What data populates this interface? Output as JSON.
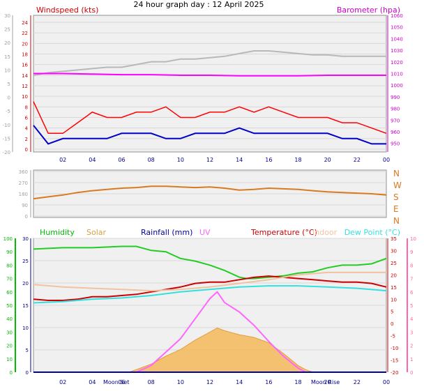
{
  "page": {
    "title": "24 hour graph day : 12 April 2025"
  },
  "colors": {
    "windspeed": "#ff0000",
    "wind_avg": "#0000c8",
    "barometer": "#ff00ff",
    "temp_gray": "#b8b8b8",
    "direction": "#d87a20",
    "humidity": "#22cc22",
    "solar": "#f5b85a",
    "rainfall": "#0000a0",
    "uv": "#ff66ff",
    "temperature": "#cc0000",
    "indoor": "#f2c2a0",
    "dewpoint": "#33e0e0",
    "axis_left_gray": "#a0a0a0",
    "axis_green": "#00bb00",
    "axis_pink": "#ff66aa",
    "hour_labels": "#000090"
  },
  "chart_data": [
    {
      "type": "line",
      "id": "wind",
      "labels": {
        "left": "Windspeed (kts)",
        "right": "Barometer (hpa)"
      },
      "x_ticks": [
        "02",
        "04",
        "06",
        "08",
        "10",
        "12",
        "14",
        "16",
        "18",
        "20",
        "22",
        "00"
      ],
      "left_axis_a": {
        "ticks": [
          "30",
          "25",
          "20",
          "15",
          "10",
          "5",
          "0",
          "-5",
          "-10",
          "-15",
          "-20"
        ],
        "range": [
          -20,
          30
        ]
      },
      "left_axis_b": {
        "ticks": [
          "24",
          "22",
          "20",
          "18",
          "16",
          "14",
          "12",
          "10",
          "8",
          "6",
          "4",
          "2",
          "0"
        ],
        "range": [
          0,
          24
        ]
      },
      "right_axis": {
        "ticks": [
          "1060",
          "1050",
          "1040",
          "1030",
          "1020",
          "1010",
          "1000",
          "990",
          "980",
          "970",
          "960",
          "950"
        ],
        "range": [
          945,
          1060
        ]
      },
      "series": [
        {
          "key": "gust",
          "axis": "b",
          "x": [
            0,
            1,
            2,
            3,
            4,
            5,
            6,
            7,
            8,
            9,
            10,
            11,
            12,
            13,
            14,
            15,
            16,
            17,
            18,
            19,
            20,
            21,
            22,
            23,
            24
          ],
          "y": [
            9,
            3,
            3,
            5,
            7,
            6,
            6,
            7,
            7,
            8,
            6,
            6,
            7,
            7,
            8,
            7,
            8,
            7,
            6,
            6,
            6,
            5,
            5,
            4,
            3
          ]
        },
        {
          "key": "avg",
          "axis": "b",
          "x": [
            0,
            1,
            2,
            3,
            4,
            5,
            6,
            7,
            8,
            9,
            10,
            11,
            12,
            13,
            14,
            15,
            16,
            17,
            18,
            19,
            20,
            21,
            22,
            23,
            24
          ],
          "y": [
            4.5,
            1,
            2,
            2,
            2,
            2,
            3,
            3,
            3,
            2,
            2,
            3,
            3,
            3,
            4,
            3,
            3,
            3,
            3,
            3,
            3,
            2,
            2,
            1,
            1
          ]
        },
        {
          "key": "temp_gray",
          "axis": "a",
          "x": [
            0,
            1,
            2,
            3,
            4,
            5,
            6,
            7,
            8,
            9,
            10,
            11,
            12,
            13,
            14,
            15,
            16,
            17,
            18,
            19,
            20,
            21,
            22,
            23,
            24
          ],
          "y": [
            8,
            9,
            9.5,
            10,
            10.5,
            11,
            11,
            12,
            13,
            13,
            14,
            14,
            14.5,
            15,
            16,
            17,
            17,
            16.5,
            16,
            15.5,
            15.5,
            15,
            15,
            15,
            15
          ]
        },
        {
          "key": "barometer",
          "axis": "r",
          "x": [
            0,
            2,
            4,
            6,
            8,
            10,
            12,
            14,
            16,
            18,
            20,
            22,
            24
          ],
          "y": [
            1010,
            1010,
            1009.5,
            1009,
            1009,
            1008.5,
            1008.5,
            1008,
            1008,
            1008,
            1008.5,
            1008.5,
            1008.5
          ]
        }
      ]
    },
    {
      "type": "line",
      "id": "direction",
      "labels_right": [
        "N",
        "W",
        "S",
        "E",
        "N"
      ],
      "left_ticks": [
        "360",
        "270",
        "180",
        "90",
        "0"
      ],
      "range": [
        0,
        360
      ],
      "series": [
        {
          "key": "dir",
          "x": [
            0,
            1,
            2,
            3,
            4,
            5,
            6,
            7,
            8,
            9,
            10,
            11,
            12,
            13,
            14,
            15,
            16,
            17,
            18,
            19,
            20,
            21,
            22,
            23,
            24
          ],
          "y": [
            140,
            155,
            170,
            190,
            205,
            215,
            225,
            230,
            240,
            240,
            235,
            230,
            235,
            225,
            210,
            215,
            225,
            220,
            215,
            205,
            195,
            190,
            185,
            180,
            170
          ]
        }
      ]
    },
    {
      "type": "line",
      "id": "temp",
      "labels": {
        "humidity": "Humidity",
        "solar": "Solar",
        "rainfall": "Rainfall (mm)",
        "uv": "UV",
        "temperature": "Temperature (°C)",
        "indoor": "Indoor",
        "dewpoint": "Dew Point (°C)"
      },
      "moon": {
        "set": "Moon Set",
        "rise": "Moon Rise"
      },
      "x_ticks": [
        "02",
        "04",
        "06",
        "08",
        "10",
        "12",
        "14",
        "16",
        "18",
        "20",
        "22",
        "00"
      ],
      "humidity_axis": {
        "ticks": [
          "100",
          "90",
          "80",
          "70",
          "60",
          "50",
          "40",
          "30",
          "20",
          "10",
          "0"
        ],
        "range": [
          0,
          100
        ]
      },
      "rain_axis": {
        "ticks": [
          "30",
          "25",
          "20",
          "15",
          "10",
          "5",
          "0"
        ],
        "range": [
          0,
          30
        ]
      },
      "temp_axis": {
        "ticks": [
          "35",
          "30",
          "25",
          "20",
          "15",
          "10",
          "5",
          "0",
          "-5",
          "-10",
          "-15",
          "-20"
        ],
        "range": [
          -20,
          35
        ]
      },
      "uv_axis": {
        "ticks": [
          "10",
          "9",
          "8",
          "7",
          "6",
          "5",
          "4",
          "3",
          "2",
          "1",
          "0"
        ],
        "range": [
          0,
          10
        ]
      },
      "series": [
        {
          "key": "humidity",
          "axis": "humidity",
          "x": [
            0,
            2,
            4,
            6,
            7,
            8,
            9,
            10,
            11,
            12,
            13,
            14,
            14.5,
            15,
            16,
            17,
            18,
            19,
            20,
            21,
            22,
            23,
            24
          ],
          "y": [
            92,
            93,
            93,
            94,
            94,
            91,
            90,
            85,
            83,
            80,
            76,
            71,
            70,
            70,
            71,
            72,
            74,
            75,
            78,
            80,
            80,
            81,
            85
          ]
        },
        {
          "key": "temperature",
          "axis": "temp",
          "x": [
            0,
            1,
            2,
            3,
            4,
            5,
            6,
            7,
            8,
            9,
            10,
            11,
            12,
            13,
            14,
            15,
            16,
            17,
            18,
            19,
            20,
            21,
            22,
            23,
            24
          ],
          "y": [
            10,
            9.5,
            9.5,
            10,
            11,
            11,
            11.5,
            12,
            13,
            14,
            15,
            16.5,
            17,
            17,
            18,
            19,
            19.5,
            19,
            18.5,
            18,
            17.5,
            17,
            17,
            16.5,
            15
          ]
        },
        {
          "key": "dewpoint",
          "axis": "temp",
          "x": [
            0,
            2,
            4,
            6,
            8,
            10,
            12,
            14,
            16,
            18,
            20,
            22,
            24
          ],
          "y": [
            8.5,
            9,
            10,
            10.5,
            11.5,
            13,
            14,
            15,
            15.5,
            15.5,
            15,
            14.5,
            13.5
          ]
        },
        {
          "key": "indoor",
          "axis": "temp",
          "x": [
            0,
            2,
            4,
            6,
            8,
            10,
            12,
            14,
            16,
            18,
            20,
            22,
            24
          ],
          "y": [
            16,
            15,
            14.5,
            14,
            13.5,
            14,
            15,
            16.5,
            18,
            20,
            21,
            21,
            21
          ]
        },
        {
          "key": "solar",
          "axis": "humidity",
          "x": [
            6.5,
            7,
            8,
            9,
            10,
            11,
            12,
            12.5,
            13,
            14,
            15,
            16,
            17,
            18,
            18.5,
            19
          ],
          "y": [
            0,
            2,
            6,
            12,
            17,
            24,
            30,
            33,
            31,
            28,
            26,
            22,
            14,
            5,
            2,
            0
          ]
        },
        {
          "key": "uv",
          "axis": "uv",
          "x": [
            7,
            8,
            9,
            10,
            11,
            12,
            12.5,
            13,
            14,
            15,
            16,
            17,
            18,
            18.5
          ],
          "y": [
            0,
            0.5,
            1.5,
            2.5,
            4,
            5.5,
            6,
            5.2,
            4.5,
            3.5,
            2.3,
            1.2,
            0.3,
            0
          ]
        },
        {
          "key": "rainfall",
          "axis": "rain",
          "x": [
            0,
            24
          ],
          "y": [
            0,
            0
          ]
        }
      ]
    }
  ]
}
